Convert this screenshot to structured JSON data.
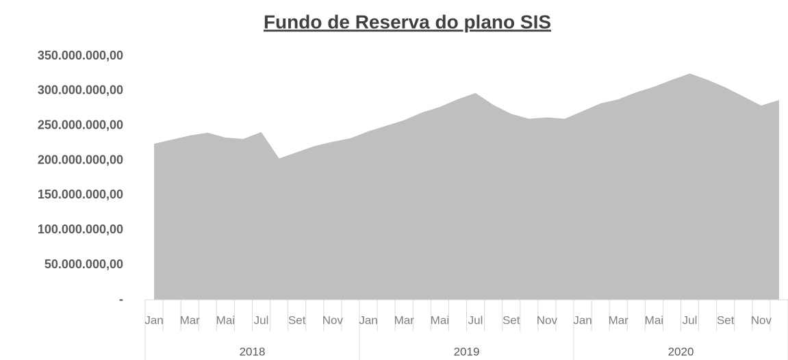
{
  "chart_data": {
    "type": "area",
    "title": "Fundo de Reserva do plano SIS",
    "categories": [
      "Jan",
      null,
      "Mar",
      null,
      "Mai",
      null,
      "Jul",
      null,
      "Set",
      null,
      "Nov",
      null,
      "Jan",
      null,
      "Mar",
      null,
      "Mai",
      null,
      "Jul",
      null,
      "Set",
      null,
      "Nov",
      null,
      "Jan",
      null,
      "Mar",
      null,
      "Mai",
      null,
      "Jul",
      null,
      "Set",
      null,
      "Nov",
      null
    ],
    "years": [
      "2018",
      "2019",
      "2020"
    ],
    "values": [
      224000000,
      230000000,
      236000000,
      240000000,
      233000000,
      231000000,
      241000000,
      203000000,
      212000000,
      221000000,
      227000000,
      232000000,
      242000000,
      250000000,
      258000000,
      269000000,
      277000000,
      288000000,
      297000000,
      280000000,
      267000000,
      260000000,
      262000000,
      260000000,
      271000000,
      282000000,
      288000000,
      298000000,
      306000000,
      316000000,
      325000000,
      316000000,
      305000000,
      292000000,
      279000000,
      287000000
    ],
    "color": "#bfbfbf",
    "ylim": [
      0,
      350000000
    ],
    "yticks": [
      {
        "value": 0,
        "label": "-"
      },
      {
        "value": 50000000,
        "label": "50.000.000,00"
      },
      {
        "value": 100000000,
        "label": "100.000.000,00"
      },
      {
        "value": 150000000,
        "label": "150.000.000,00"
      },
      {
        "value": 200000000,
        "label": "200.000.000,00"
      },
      {
        "value": 250000000,
        "label": "250.000.000,00"
      },
      {
        "value": 300000000,
        "label": "300.000.000,00"
      },
      {
        "value": 350000000,
        "label": "350.000.000,00"
      }
    ],
    "grid": false
  }
}
